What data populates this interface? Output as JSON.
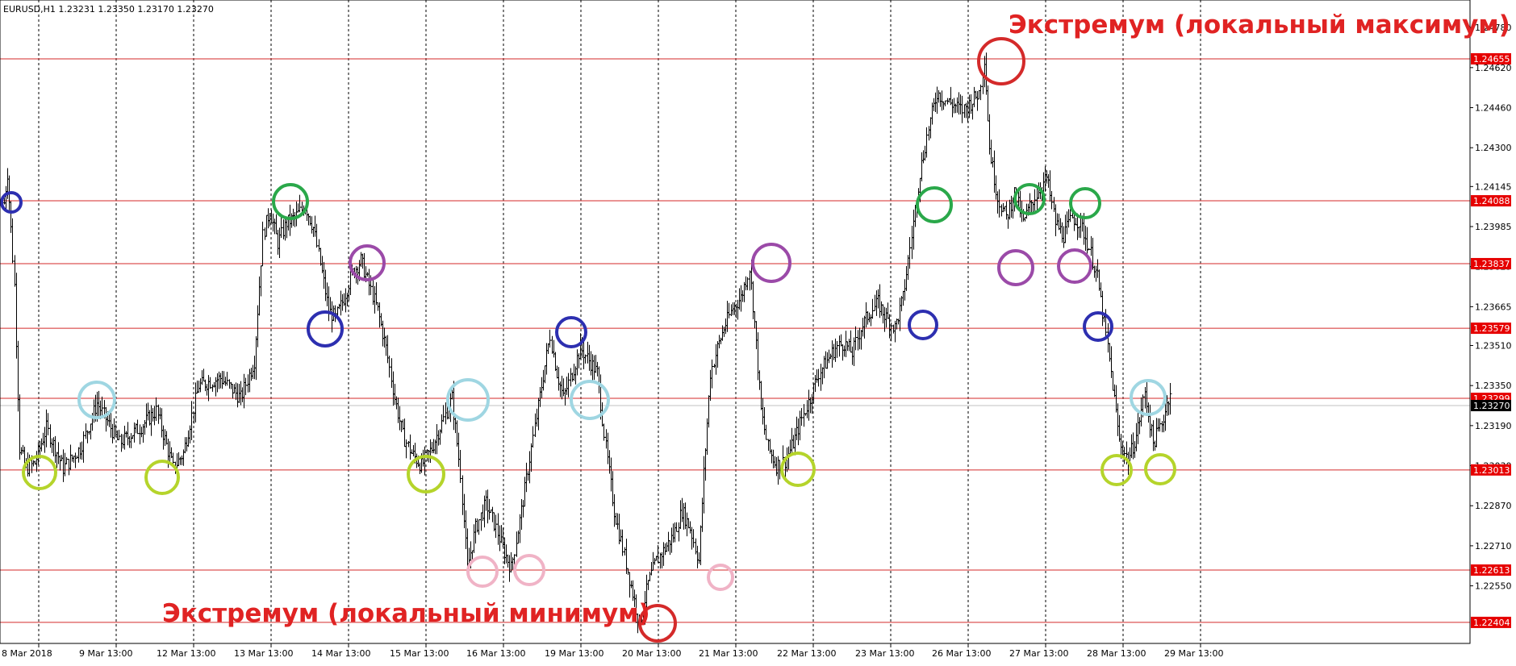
{
  "chart_data": {
    "type": "candlestick",
    "symbol_header": "EURUSD,H1  1.23231 1.23350 1.23170 1.23270",
    "ylim": [
      1.2232,
      1.2489
    ],
    "y_ticks": [
      "1.24780",
      "1.24620",
      "1.24460",
      "1.24300",
      "1.24145",
      "1.23985",
      "1.23825",
      "1.23665",
      "1.23510",
      "1.23350",
      "1.23190",
      "1.23030",
      "1.22870",
      "1.22710",
      "1.22550"
    ],
    "x_labels": [
      "8 Mar 2018",
      "9 Mar 13:00",
      "12 Mar 13:00",
      "13 Mar 13:00",
      "14 Mar 13:00",
      "15 Mar 13:00",
      "16 Mar 13:00",
      "19 Mar 13:00",
      "20 Mar 13:00",
      "21 Mar 13:00",
      "22 Mar 13:00",
      "23 Mar 13:00",
      "26 Mar 13:00",
      "27 Mar 13:00",
      "28 Mar 13:00",
      "29 Mar 13:00"
    ],
    "current_price": "1.23270",
    "levels": [
      "1.24655",
      "1.24088",
      "1.23837",
      "1.23579",
      "1.23299",
      "1.23013",
      "1.22613",
      "1.22404"
    ],
    "annotations": {
      "max": "Экстремум (локальный максимум)",
      "min": "Экстремум (локальный минимум)"
    },
    "path_points": [
      [
        0,
        1.2408
      ],
      [
        2,
        1.242
      ],
      [
        6,
        1.2375
      ],
      [
        9,
        1.231
      ],
      [
        13,
        1.2302
      ],
      [
        18,
        1.2304
      ],
      [
        25,
        1.2318
      ],
      [
        35,
        1.2302
      ],
      [
        45,
        1.231
      ],
      [
        55,
        1.2328
      ],
      [
        68,
        1.2312
      ],
      [
        80,
        1.2318
      ],
      [
        90,
        1.2325
      ],
      [
        100,
        1.2302
      ],
      [
        106,
        1.2308
      ],
      [
        115,
        1.2335
      ],
      [
        128,
        1.2338
      ],
      [
        140,
        1.233
      ],
      [
        148,
        1.2345
      ],
      [
        153,
        1.2395
      ],
      [
        157,
        1.2405
      ],
      [
        162,
        1.2392
      ],
      [
        167,
        1.24
      ],
      [
        172,
        1.2402
      ],
      [
        178,
        1.2407
      ],
      [
        183,
        1.2398
      ],
      [
        188,
        1.238
      ],
      [
        192,
        1.2365
      ],
      [
        196,
        1.2362
      ],
      [
        201,
        1.237
      ],
      [
        206,
        1.238
      ],
      [
        211,
        1.2385
      ],
      [
        216,
        1.2375
      ],
      [
        221,
        1.2365
      ],
      [
        226,
        1.235
      ],
      [
        231,
        1.233
      ],
      [
        236,
        1.2315
      ],
      [
        241,
        1.2308
      ],
      [
        247,
        1.2303
      ],
      [
        253,
        1.231
      ],
      [
        259,
        1.232
      ],
      [
        265,
        1.233
      ],
      [
        270,
        1.23
      ],
      [
        274,
        1.2262
      ],
      [
        279,
        1.2278
      ],
      [
        285,
        1.2288
      ],
      [
        290,
        1.228
      ],
      [
        295,
        1.227
      ],
      [
        300,
        1.2262
      ],
      [
        306,
        1.2285
      ],
      [
        312,
        1.231
      ],
      [
        318,
        1.2335
      ],
      [
        323,
        1.2355
      ],
      [
        327,
        1.234
      ],
      [
        331,
        1.233
      ],
      [
        336,
        1.234
      ],
      [
        341,
        1.235
      ],
      [
        346,
        1.2345
      ],
      [
        351,
        1.234
      ],
      [
        356,
        1.231
      ],
      [
        361,
        1.2285
      ],
      [
        366,
        1.227
      ],
      [
        371,
        1.2255
      ],
      [
        376,
        1.224
      ],
      [
        381,
        1.2256
      ],
      [
        386,
        1.2265
      ],
      [
        391,
        1.227
      ],
      [
        396,
        1.2275
      ],
      [
        401,
        1.2285
      ],
      [
        406,
        1.2278
      ],
      [
        411,
        1.2265
      ],
      [
        414,
        1.23
      ],
      [
        418,
        1.234
      ],
      [
        422,
        1.235
      ],
      [
        426,
        1.2358
      ],
      [
        431,
        1.2366
      ],
      [
        436,
        1.237
      ],
      [
        441,
        1.2382
      ],
      [
        444,
        1.236
      ],
      [
        448,
        1.2325
      ],
      [
        452,
        1.231
      ],
      [
        457,
        1.2303
      ],
      [
        462,
        1.2305
      ],
      [
        467,
        1.2312
      ],
      [
        472,
        1.2322
      ],
      [
        477,
        1.233
      ],
      [
        482,
        1.234
      ],
      [
        487,
        1.2345
      ],
      [
        492,
        1.235
      ],
      [
        497,
        1.2352
      ],
      [
        502,
        1.2348
      ],
      [
        507,
        1.2358
      ],
      [
        512,
        1.2364
      ],
      [
        517,
        1.2368
      ],
      [
        522,
        1.2362
      ],
      [
        527,
        1.2358
      ],
      [
        532,
        1.237
      ],
      [
        537,
        1.2395
      ],
      [
        542,
        1.242
      ],
      [
        547,
        1.2438
      ],
      [
        552,
        1.2452
      ],
      [
        557,
        1.2449
      ],
      [
        562,
        1.2447
      ],
      [
        567,
        1.2445
      ],
      [
        572,
        1.2448
      ],
      [
        577,
        1.2452
      ],
      [
        580,
        1.2466
      ],
      [
        583,
        1.243
      ],
      [
        588,
        1.241
      ],
      [
        593,
        1.2402
      ],
      [
        598,
        1.2412
      ],
      [
        603,
        1.24
      ],
      [
        608,
        1.2408
      ],
      [
        613,
        1.2414
      ],
      [
        617,
        1.2418
      ],
      [
        622,
        1.24
      ],
      [
        627,
        1.2395
      ],
      [
        632,
        1.2402
      ],
      [
        637,
        1.24
      ],
      [
        642,
        1.239
      ],
      [
        647,
        1.2378
      ],
      [
        652,
        1.2355
      ],
      [
        656,
        1.2335
      ],
      [
        660,
        1.2313
      ],
      [
        665,
        1.2305
      ],
      [
        670,
        1.2315
      ],
      [
        675,
        1.2332
      ],
      [
        680,
        1.2312
      ],
      [
        685,
        1.232
      ],
      [
        690,
        1.2333
      ]
    ]
  }
}
